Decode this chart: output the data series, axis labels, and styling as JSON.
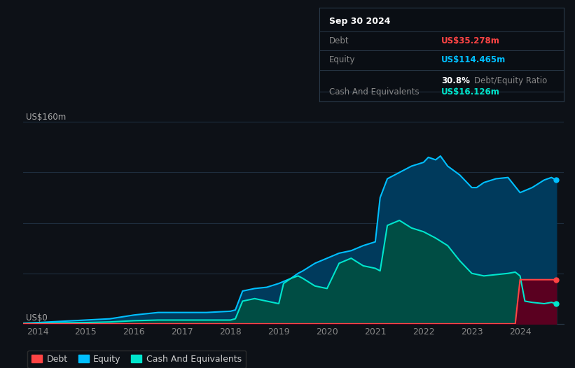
{
  "bg_color": "#0d1117",
  "plot_bg_color": "#0d1117",
  "title_box": {
    "date": "Sep 30 2024",
    "debt_label": "Debt",
    "debt_value": "US$35.278m",
    "debt_color": "#ff4444",
    "equity_label": "Equity",
    "equity_value": "US$114.465m",
    "equity_color": "#00bfff",
    "ratio_value": "30.8%",
    "ratio_text": "Debt/Equity Ratio",
    "cash_label": "Cash And Equivalents",
    "cash_value": "US$16.126m",
    "cash_color": "#00e5cc"
  },
  "y_label_top": "US$160m",
  "y_label_bottom": "US$0",
  "x_ticks": [
    "2014",
    "2015",
    "2016",
    "2017",
    "2018",
    "2019",
    "2020",
    "2021",
    "2022",
    "2023",
    "2024"
  ],
  "equity_color": "#00bfff",
  "equity_fill_color": "#003a5c",
  "cash_color": "#00e5cc",
  "cash_fill_color": "#004d44",
  "debt_color": "#ff4444",
  "debt_fill_color": "#5a0020",
  "equity_data": {
    "x": [
      2013.7,
      2014.0,
      2014.25,
      2014.5,
      2015.0,
      2015.5,
      2016.0,
      2016.25,
      2016.5,
      2017.0,
      2017.5,
      2018.0,
      2018.1,
      2018.25,
      2018.5,
      2018.75,
      2019.0,
      2019.25,
      2019.4,
      2019.5,
      2019.75,
      2020.0,
      2020.25,
      2020.5,
      2020.75,
      2021.0,
      2021.1,
      2021.25,
      2021.5,
      2021.75,
      2022.0,
      2022.1,
      2022.25,
      2022.35,
      2022.5,
      2022.75,
      2023.0,
      2023.1,
      2023.25,
      2023.5,
      2023.75,
      2024.0,
      2024.25,
      2024.5,
      2024.65,
      2024.75
    ],
    "y": [
      0.5,
      1,
      1.5,
      2,
      3,
      4,
      7,
      8,
      9,
      9,
      9,
      10,
      11,
      26,
      28,
      29,
      32,
      36,
      40,
      42,
      48,
      52,
      56,
      58,
      62,
      65,
      100,
      115,
      120,
      125,
      128,
      132,
      130,
      133,
      125,
      118,
      108,
      108,
      112,
      115,
      116,
      104,
      108,
      114,
      116,
      114
    ]
  },
  "cash_data": {
    "x": [
      2013.7,
      2014.0,
      2014.5,
      2015.0,
      2015.5,
      2016.0,
      2016.5,
      2017.0,
      2017.5,
      2018.0,
      2018.1,
      2018.25,
      2018.5,
      2018.75,
      2019.0,
      2019.1,
      2019.25,
      2019.4,
      2019.5,
      2019.75,
      2020.0,
      2020.25,
      2020.5,
      2020.75,
      2021.0,
      2021.1,
      2021.25,
      2021.5,
      2021.75,
      2022.0,
      2022.25,
      2022.5,
      2022.75,
      2023.0,
      2023.25,
      2023.5,
      2023.75,
      2023.9,
      2024.0,
      2024.1,
      2024.25,
      2024.5,
      2024.65,
      2024.75
    ],
    "y": [
      0.3,
      0.5,
      0.8,
      1,
      1.5,
      2.5,
      3,
      3,
      3,
      3,
      4,
      18,
      20,
      18,
      16,
      32,
      36,
      38,
      36,
      30,
      28,
      48,
      52,
      46,
      44,
      42,
      78,
      82,
      76,
      73,
      68,
      62,
      50,
      40,
      38,
      39,
      40,
      41,
      38,
      18,
      17,
      16,
      17,
      16
    ]
  },
  "debt_data": {
    "x": [
      2013.7,
      2023.9,
      2024.0,
      2024.1,
      2024.25,
      2024.5,
      2024.65,
      2024.75
    ],
    "y": [
      0,
      0,
      35,
      35,
      35,
      35,
      35,
      35
    ]
  },
  "ylim": [
    0,
    175
  ],
  "xlim": [
    2013.7,
    2024.9
  ],
  "legend": [
    {
      "label": "Debt",
      "color": "#ff4444"
    },
    {
      "label": "Equity",
      "color": "#00bfff"
    },
    {
      "label": "Cash And Equivalents",
      "color": "#00e5cc"
    }
  ]
}
